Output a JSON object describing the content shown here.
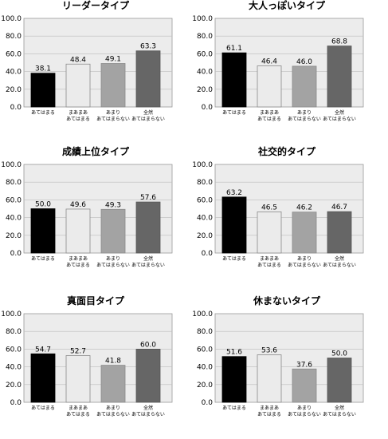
{
  "chart_data": [
    {
      "type": "bar",
      "title": "リーダータイプ",
      "categories": [
        "あてはまる",
        "まあまああてはまる",
        "あまりあてはまらない",
        "全然あてはまらない"
      ],
      "category_lines": [
        [
          "あてはまる"
        ],
        [
          "まあまあ",
          "あてはまる"
        ],
        [
          "あまり",
          "あてはまらない"
        ],
        [
          "全然",
          "あてはまらない"
        ]
      ],
      "values": [
        38.1,
        48.4,
        49.1,
        63.3
      ],
      "value_labels": [
        "38.1",
        "48.4",
        "49.1",
        "63.3"
      ],
      "ylim": [
        0,
        100
      ],
      "yticks": [
        0,
        20,
        40,
        60,
        80,
        100
      ],
      "ytick_labels": [
        "0.0",
        "20.0",
        "40.0",
        "60.0",
        "80.0",
        "100.0"
      ],
      "grid": true
    },
    {
      "type": "bar",
      "title": "大人っぽいタイプ",
      "categories": [
        "あてはまる",
        "まあまああてはまる",
        "あまりあてはまらない",
        "全然あてはまらない"
      ],
      "category_lines": [
        [
          "あてはまる"
        ],
        [
          "まあまあ",
          "あてはまる"
        ],
        [
          "あまり",
          "あてはまらない"
        ],
        [
          "全然",
          "あてはまらない"
        ]
      ],
      "values": [
        61.1,
        46.4,
        46.0,
        68.8
      ],
      "value_labels": [
        "61.1",
        "46.4",
        "46.0",
        "68.8"
      ],
      "ylim": [
        0,
        100
      ],
      "yticks": [
        0,
        20,
        40,
        60,
        80,
        100
      ],
      "ytick_labels": [
        "0.0",
        "20.0",
        "40.0",
        "60.0",
        "80.0",
        "100.0"
      ],
      "grid": true
    },
    {
      "type": "bar",
      "title": "成績上位タイプ",
      "categories": [
        "あてはまる",
        "まあまああてはまる",
        "あまりあてはまらない",
        "全然あてはまらない"
      ],
      "category_lines": [
        [
          "あてはまる"
        ],
        [
          "まあまあ",
          "あてはまる"
        ],
        [
          "あまり",
          "あてはまらない"
        ],
        [
          "全然",
          "あてはまらない"
        ]
      ],
      "values": [
        50.0,
        49.6,
        49.3,
        57.6
      ],
      "value_labels": [
        "50.0",
        "49.6",
        "49.3",
        "57.6"
      ],
      "ylim": [
        0,
        100
      ],
      "yticks": [
        0,
        20,
        40,
        60,
        80,
        100
      ],
      "ytick_labels": [
        "0.0",
        "20.0",
        "40.0",
        "60.0",
        "80.0",
        "100.0"
      ],
      "grid": true
    },
    {
      "type": "bar",
      "title": "社交的タイプ",
      "categories": [
        "あてはまる",
        "まあまああてはまる",
        "あまりあてはまらない",
        "全然あてはまらない"
      ],
      "category_lines": [
        [
          "あてはまる"
        ],
        [
          "まあまあ",
          "あてはまる"
        ],
        [
          "あまり",
          "あてはまらない"
        ],
        [
          "全然",
          "あてはまらない"
        ]
      ],
      "values": [
        63.2,
        46.5,
        46.2,
        46.7
      ],
      "value_labels": [
        "63.2",
        "46.5",
        "46.2",
        "46.7"
      ],
      "ylim": [
        0,
        100
      ],
      "yticks": [
        0,
        20,
        40,
        60,
        80,
        100
      ],
      "ytick_labels": [
        "0.0",
        "20.0",
        "40.0",
        "60.0",
        "80.0",
        "100.0"
      ],
      "grid": true
    },
    {
      "type": "bar",
      "title": "真面目タイプ",
      "categories": [
        "あてはまる",
        "まあまああてはまる",
        "あまりあてはまらない",
        "全然あてはまらない"
      ],
      "category_lines": [
        [
          "あてはまる"
        ],
        [
          "まあまあ",
          "あてはまる"
        ],
        [
          "あまり",
          "あてはまらない"
        ],
        [
          "全然",
          "あてはまらない"
        ]
      ],
      "values": [
        54.7,
        52.7,
        41.8,
        60.0
      ],
      "value_labels": [
        "54.7",
        "52.7",
        "41.8",
        "60.0"
      ],
      "ylim": [
        0,
        100
      ],
      "yticks": [
        0,
        20,
        40,
        60,
        80,
        100
      ],
      "ytick_labels": [
        "0.0",
        "20.0",
        "40.0",
        "60.0",
        "80.0",
        "100.0"
      ],
      "grid": true
    },
    {
      "type": "bar",
      "title": "休まないタイプ",
      "categories": [
        "あてはまる",
        "まあまああてはまる",
        "あまりあてはまらない",
        "全然あてはまらない"
      ],
      "category_lines": [
        [
          "あてはまる"
        ],
        [
          "まあまあ",
          "あてはまる"
        ],
        [
          "あまり",
          "あてはまらない"
        ],
        [
          "全然",
          "あてはまらない"
        ]
      ],
      "values": [
        51.6,
        53.6,
        37.6,
        50.0
      ],
      "value_labels": [
        "51.6",
        "53.6",
        "37.6",
        "50.0"
      ],
      "ylim": [
        0,
        100
      ],
      "yticks": [
        0,
        20,
        40,
        60,
        80,
        100
      ],
      "ytick_labels": [
        "0.0",
        "20.0",
        "40.0",
        "60.0",
        "80.0",
        "100.0"
      ],
      "grid": true
    }
  ],
  "colors": {
    "bars": [
      "#000000",
      "#ebebeb",
      "#a3a3a3",
      "#666666"
    ],
    "bar_strokes": [
      "#000000",
      "#8a8a8a",
      "#8a8a8a",
      "#555555"
    ],
    "plot_background": "#ececec",
    "plot_border": "#9a9a9a",
    "gridline": "#bdbdbd"
  }
}
